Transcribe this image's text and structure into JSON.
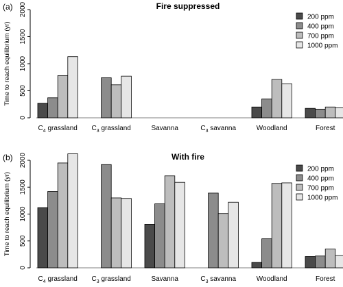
{
  "chart_data": [
    {
      "type": "bar",
      "panel_label": "(a)",
      "title": "Fire suppressed",
      "ylabel": "Time to reach equilibrium (yr)",
      "xlabel": "",
      "ylim": [
        0,
        2000
      ],
      "yticks": [
        0,
        500,
        1000,
        1500,
        2000
      ],
      "categories": [
        {
          "main": "C",
          "sub": "4",
          "rest": " grassland"
        },
        {
          "main": "C",
          "sub": "3",
          "rest": " grassland"
        },
        {
          "main": "Savanna",
          "sub": "",
          "rest": ""
        },
        {
          "main": "C",
          "sub": "3",
          "rest": " savanna"
        },
        {
          "main": "Woodland",
          "sub": "",
          "rest": ""
        },
        {
          "main": "Forest",
          "sub": "",
          "rest": ""
        }
      ],
      "series": [
        {
          "name": "200 ppm",
          "color": "#4a4a4a",
          "values": [
            270,
            0,
            0,
            0,
            200,
            175
          ]
        },
        {
          "name": "400 ppm",
          "color": "#8c8c8c",
          "values": [
            370,
            740,
            0,
            0,
            350,
            160
          ]
        },
        {
          "name": "700 ppm",
          "color": "#bdbdbd",
          "values": [
            780,
            610,
            0,
            0,
            710,
            200
          ]
        },
        {
          "name": "1000 ppm",
          "color": "#e6e6e6",
          "values": [
            1130,
            770,
            0,
            0,
            630,
            190
          ]
        }
      ],
      "legend_position": "top-right",
      "grid": false
    },
    {
      "type": "bar",
      "panel_label": "(b)",
      "title": "With fire",
      "ylabel": "Time to reach equilibrium (yr)",
      "xlabel": "",
      "ylim": [
        0,
        2000
      ],
      "yticks": [
        0,
        500,
        1000,
        1500,
        2000
      ],
      "categories": [
        {
          "main": "C",
          "sub": "4",
          "rest": " grassland"
        },
        {
          "main": "C",
          "sub": "3",
          "rest": " grassland"
        },
        {
          "main": "Savanna",
          "sub": "",
          "rest": ""
        },
        {
          "main": "C",
          "sub": "3",
          "rest": " savanna"
        },
        {
          "main": "Woodland",
          "sub": "",
          "rest": ""
        },
        {
          "main": "Forest",
          "sub": "",
          "rest": ""
        }
      ],
      "series": [
        {
          "name": "200 ppm",
          "color": "#4a4a4a",
          "values": [
            1120,
            0,
            810,
            0,
            100,
            210
          ]
        },
        {
          "name": "400 ppm",
          "color": "#8c8c8c",
          "values": [
            1420,
            1920,
            1190,
            1390,
            540,
            220
          ]
        },
        {
          "name": "700 ppm",
          "color": "#bdbdbd",
          "values": [
            1950,
            1300,
            1710,
            1010,
            1570,
            350
          ]
        },
        {
          "name": "1000 ppm",
          "color": "#e6e6e6",
          "values": [
            2120,
            1290,
            1590,
            1220,
            1580,
            230
          ]
        }
      ],
      "legend_position": "top-right",
      "grid": false
    }
  ]
}
